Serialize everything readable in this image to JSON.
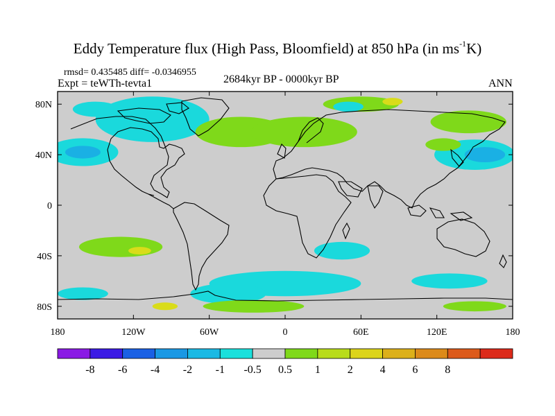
{
  "header": {
    "title": "Eddy Temperature flux (High Pass, Bloomfield) at 850 hPa (in ms",
    "title_sup": "-1",
    "title_tail": "K)",
    "stats": "rmsd= 0.435485 diff= -0.0346955",
    "experiment": "Expt = teWTh-tevta1",
    "period": "2684kyr BP - 0000kyr BP",
    "season": "ANN"
  },
  "map": {
    "projection": "cylindrical equidistant",
    "lon_range": [
      -180,
      180
    ],
    "lat_range": [
      -90,
      90
    ],
    "background_color": "#cdcdcd",
    "x_ticks": [
      {
        "value": -180,
        "label": "180"
      },
      {
        "value": -120,
        "label": "120W"
      },
      {
        "value": -60,
        "label": "60W"
      },
      {
        "value": 0,
        "label": "0"
      },
      {
        "value": 60,
        "label": "60E"
      },
      {
        "value": 120,
        "label": "120E"
      },
      {
        "value": 180,
        "label": "180"
      }
    ],
    "y_ticks": [
      {
        "value": 80,
        "label": "80N"
      },
      {
        "value": 40,
        "label": "40N"
      },
      {
        "value": 0,
        "label": "0"
      },
      {
        "value": -40,
        "label": "40S"
      },
      {
        "value": -80,
        "label": "80S"
      }
    ],
    "anomaly_regions": [
      {
        "level": "-2",
        "color": "#1ab0e4",
        "lon": -120,
        "lat": 66,
        "rlon": 26,
        "rlat": 10
      },
      {
        "level": "-1",
        "color": "#1ad9dc",
        "lon": -105,
        "lat": 68,
        "rlon": 45,
        "rlat": 18
      },
      {
        "level": "-1",
        "color": "#1ad9dc",
        "lon": -160,
        "lat": 42,
        "rlon": 28,
        "rlat": 11
      },
      {
        "level": "-2",
        "color": "#1ab0e4",
        "lon": -160,
        "lat": 42,
        "rlon": 14,
        "rlat": 5
      },
      {
        "level": "-1",
        "color": "#1ad9dc",
        "lon": -150,
        "lat": 76,
        "rlon": 18,
        "rlat": 6
      },
      {
        "level": "1",
        "color": "#7fd91a",
        "lon": -35,
        "lat": 58,
        "rlon": 36,
        "rlat": 12
      },
      {
        "level": "1",
        "color": "#7fd91a",
        "lon": 15,
        "lat": 58,
        "rlon": 42,
        "rlat": 12
      },
      {
        "level": "1",
        "color": "#7fd91a",
        "lon": 60,
        "lat": 80,
        "rlon": 30,
        "rlat": 6
      },
      {
        "level": "-1",
        "color": "#1ad9dc",
        "lon": 50,
        "lat": 78,
        "rlon": 12,
        "rlat": 4
      },
      {
        "level": "2",
        "color": "#d9dc1a",
        "lon": 85,
        "lat": 82,
        "rlon": 8,
        "rlat": 3
      },
      {
        "level": "1",
        "color": "#7fd91a",
        "lon": 145,
        "lat": 66,
        "rlon": 30,
        "rlat": 9
      },
      {
        "level": "-1",
        "color": "#1ad9dc",
        "lon": 150,
        "lat": 40,
        "rlon": 32,
        "rlat": 12
      },
      {
        "level": "-2",
        "color": "#1ab0e4",
        "lon": 158,
        "lat": 40,
        "rlon": 16,
        "rlat": 6
      },
      {
        "level": "1",
        "color": "#7fd91a",
        "lon": 125,
        "lat": 48,
        "rlon": 14,
        "rlat": 5
      },
      {
        "level": "1",
        "color": "#7fd91a",
        "lon": -130,
        "lat": -33,
        "rlon": 33,
        "rlat": 8
      },
      {
        "level": "2",
        "color": "#d9dc1a",
        "lon": -115,
        "lat": -36,
        "rlon": 9,
        "rlat": 3
      },
      {
        "level": "-1",
        "color": "#1ad9dc",
        "lon": 45,
        "lat": -36,
        "rlon": 22,
        "rlat": 7
      },
      {
        "level": "-1",
        "color": "#1ad9dc",
        "lon": 0,
        "lat": -62,
        "rlon": 60,
        "rlat": 10
      },
      {
        "level": "-1",
        "color": "#1ad9dc",
        "lon": -45,
        "lat": -70,
        "rlon": 30,
        "rlat": 8
      },
      {
        "level": "1",
        "color": "#7fd91a",
        "lon": -25,
        "lat": -80,
        "rlon": 40,
        "rlat": 5
      },
      {
        "level": "2",
        "color": "#d9dc1a",
        "lon": -95,
        "lat": -80,
        "rlon": 10,
        "rlat": 3
      },
      {
        "level": "-1",
        "color": "#1ad9dc",
        "lon": 130,
        "lat": -60,
        "rlon": 30,
        "rlat": 6
      },
      {
        "level": "-1",
        "color": "#1ad9dc",
        "lon": -160,
        "lat": -70,
        "rlon": 20,
        "rlat": 5
      },
      {
        "level": "1",
        "color": "#7fd91a",
        "lon": 150,
        "lat": -80,
        "rlon": 25,
        "rlat": 4
      }
    ]
  },
  "colorbar": {
    "colors": [
      "#8a1ae4",
      "#3b1ae4",
      "#1a60e4",
      "#1a98e4",
      "#1ab9e4",
      "#1ae0dc",
      "#cdcdcd",
      "#7fd91a",
      "#b8dc1a",
      "#dcd41a",
      "#dcb01a",
      "#dc8a1a",
      "#dc5a1a",
      "#dc2a1a"
    ],
    "labels": [
      "-8",
      "-6",
      "-4",
      "-2",
      "-1",
      "-0.5",
      "0.5",
      "1",
      "2",
      "4",
      "6",
      "8"
    ]
  }
}
